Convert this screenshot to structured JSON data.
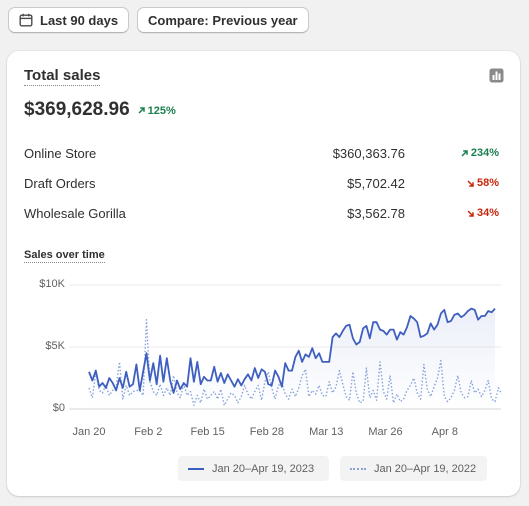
{
  "toolbar": {
    "date_range_label": "Last 90 days",
    "compare_label": "Compare: Previous year"
  },
  "card": {
    "title": "Total sales",
    "total_amount": "$369,628.96",
    "total_change": "125%",
    "total_change_direction": "up",
    "channels": [
      {
        "name": "Online Store",
        "amount": "$360,363.76",
        "change": "234%",
        "direction": "up"
      },
      {
        "name": "Draft Orders",
        "amount": "$5,702.42",
        "change": "58%",
        "direction": "down"
      },
      {
        "name": "Wholesale Gorilla",
        "amount": "$3,562.78",
        "change": "34%",
        "direction": "down"
      }
    ],
    "chart_title": "Sales over time"
  },
  "colors": {
    "current_series": "#3f5fc0",
    "previous_series": "#8aa4da",
    "positive": "#1a7f4e",
    "negative": "#c5280c"
  },
  "chart_data": {
    "type": "line",
    "title": "Sales over time",
    "x_tick_labels": [
      "Jan 20",
      "Feb 2",
      "Feb 15",
      "Feb 28",
      "Mar 13",
      "Mar 26",
      "Apr 8"
    ],
    "y_tick_labels": [
      "$0",
      "$5K",
      "$10K"
    ],
    "ylim": [
      0,
      10000
    ],
    "grid": true,
    "legend_position": "bottom",
    "series": [
      {
        "name": "Jan 20–Apr 19, 2023",
        "style": "solid",
        "values": [
          3000,
          2300,
          3100,
          1800,
          2100,
          1700,
          2500,
          2100,
          1500,
          2500,
          1700,
          3000,
          1800,
          2000,
          3600,
          1500,
          3000,
          4500,
          2300,
          3700,
          2000,
          4300,
          2200,
          4100,
          2300,
          1300,
          2300,
          1600,
          2100,
          1800,
          4100,
          2200,
          3800,
          2000,
          2600,
          2300,
          2300,
          3400,
          2200,
          2900,
          2100,
          2800,
          2300,
          1800,
          2400,
          1900,
          2400,
          2800,
          2300,
          3300,
          2500,
          3200,
          3000,
          2000,
          1900,
          3100,
          2600,
          1800,
          3700,
          3100,
          3100,
          4200,
          4700,
          3800,
          4400,
          4200,
          4900,
          4100,
          4500,
          3800,
          3800,
          3800,
          5800,
          6100,
          5800,
          6300,
          6700,
          6800,
          5700,
          5200,
          5400,
          6500,
          6700,
          5700,
          7000,
          7000,
          6400,
          6300,
          6000,
          6400,
          6400,
          5600,
          6200,
          6000,
          6600,
          7500,
          7300,
          7000,
          5800,
          5900,
          6100,
          6900,
          6400,
          6800,
          7700,
          8000,
          7000,
          7100,
          7600,
          7700,
          7400,
          7600,
          7900,
          8100,
          8000,
          7200,
          7500,
          7500,
          7900,
          7800,
          8100
        ]
      },
      {
        "name": "Jan 20–Apr 19, 2022",
        "style": "dotted",
        "values": [
          1700,
          900,
          3000,
          1500,
          1300,
          1900,
          1100,
          1500,
          1800,
          3800,
          800,
          1900,
          1100,
          1400,
          1500,
          1500,
          1100,
          7200,
          2200,
          1400,
          1100,
          2000,
          1100,
          1700,
          1100,
          2700,
          1300,
          900,
          2000,
          1100,
          1400,
          300,
          1100,
          500,
          1600,
          800,
          1100,
          1400,
          800,
          1600,
          300,
          800,
          1300,
          1100,
          500,
          1000,
          1900,
          1200,
          800,
          1400,
          1900,
          700,
          2200,
          3000,
          1700,
          800,
          1900,
          2100,
          1200,
          800,
          1600,
          1000,
          1700,
          2700,
          3200,
          1000,
          1500,
          1200,
          1900,
          1100,
          1000,
          2200,
          1300,
          1800,
          3100,
          2000,
          1000,
          700,
          3000,
          1300,
          500,
          600,
          3300,
          900,
          1500,
          700,
          3800,
          1400,
          800,
          2700,
          500,
          1200,
          600,
          800,
          1500,
          1900,
          2500,
          1300,
          800,
          3600,
          1600,
          1000,
          1800,
          2500,
          3900,
          1000,
          600,
          900,
          1500,
          2700,
          1300,
          900,
          1000,
          2300,
          1300,
          1600,
          1000,
          1500,
          2300,
          800,
          600,
          1700,
          1200
        ]
      }
    ]
  }
}
